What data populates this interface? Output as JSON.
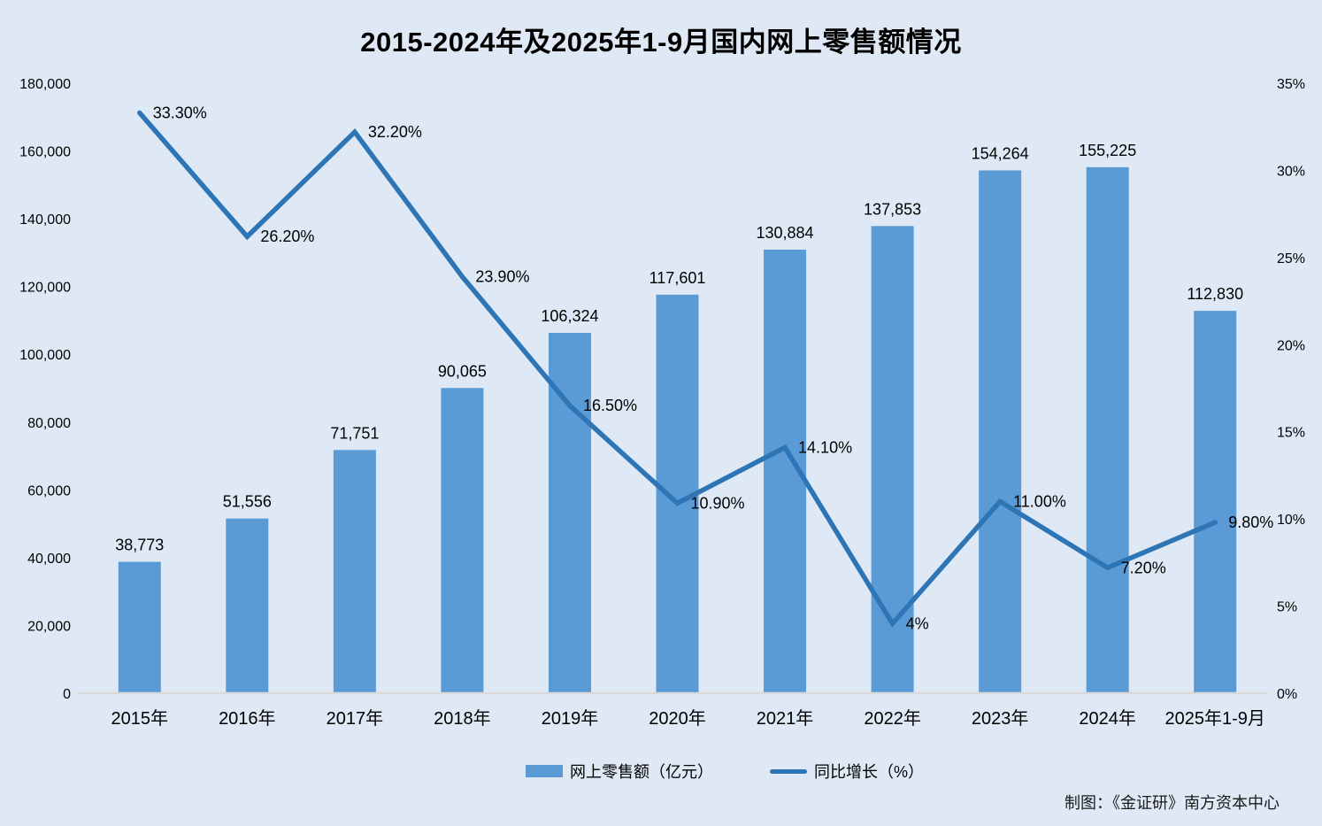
{
  "title": "2015-2024年及2025年1-9月国内网上零售额情况",
  "footer": "制图：《金证研》南方资本中心",
  "legend": {
    "bar_label": "网上零售额（亿元）",
    "line_label": "同比增长（%）"
  },
  "colors": {
    "background": "#dee9f5",
    "bar": "#5b9bd5",
    "line": "#2e75b6",
    "axis_line": "#d9d9d9",
    "text": "#000000"
  },
  "chart_data": {
    "type": "bar",
    "subtype": "bar+line combo",
    "title": "2015-2024年及2025年1-9月国内网上零售额情况",
    "categories": [
      "2015年",
      "2016年",
      "2017年",
      "2018年",
      "2019年",
      "2020年",
      "2021年",
      "2022年",
      "2023年",
      "2024年",
      "2025年1-9月"
    ],
    "series": [
      {
        "name": "网上零售额（亿元）",
        "type": "bar",
        "axis": "left",
        "values": [
          38773,
          51556,
          71751,
          90065,
          106324,
          117601,
          130884,
          137853,
          154264,
          155225,
          112830
        ],
        "labels": [
          "38,773",
          "51,556",
          "71,751",
          "90,065",
          "106,324",
          "117,601",
          "130,884",
          "137,853",
          "154,264",
          "155,225",
          "112,830"
        ]
      },
      {
        "name": "同比增长（%）",
        "type": "line",
        "axis": "right",
        "values": [
          33.3,
          26.2,
          32.2,
          23.9,
          16.5,
          10.9,
          14.1,
          4,
          11,
          7.2,
          9.8
        ],
        "labels": [
          "33.30%",
          "26.20%",
          "32.20%",
          "23.90%",
          "16.50%",
          "10.90%",
          "14.10%",
          "4%",
          "11.00%",
          "7.20%",
          "9.80%"
        ]
      }
    ],
    "left_axis": {
      "min": 0,
      "max": 180000,
      "step": 20000,
      "ticks": [
        "180,000",
        "160,000",
        "140,000",
        "120,000",
        "100,000",
        "80,000",
        "60,000",
        "40,000",
        "20,000",
        "0"
      ],
      "tick_values": [
        180000,
        160000,
        140000,
        120000,
        100000,
        80000,
        60000,
        40000,
        20000,
        0
      ]
    },
    "right_axis": {
      "min": 0,
      "max": 35,
      "step": 5,
      "ticks": [
        "35%",
        "30%",
        "25%",
        "20%",
        "15%",
        "10%",
        "5%",
        "0%"
      ],
      "tick_values": [
        35,
        30,
        25,
        20,
        15,
        10,
        5,
        0
      ]
    },
    "grid": false,
    "legend_position": "bottom"
  }
}
